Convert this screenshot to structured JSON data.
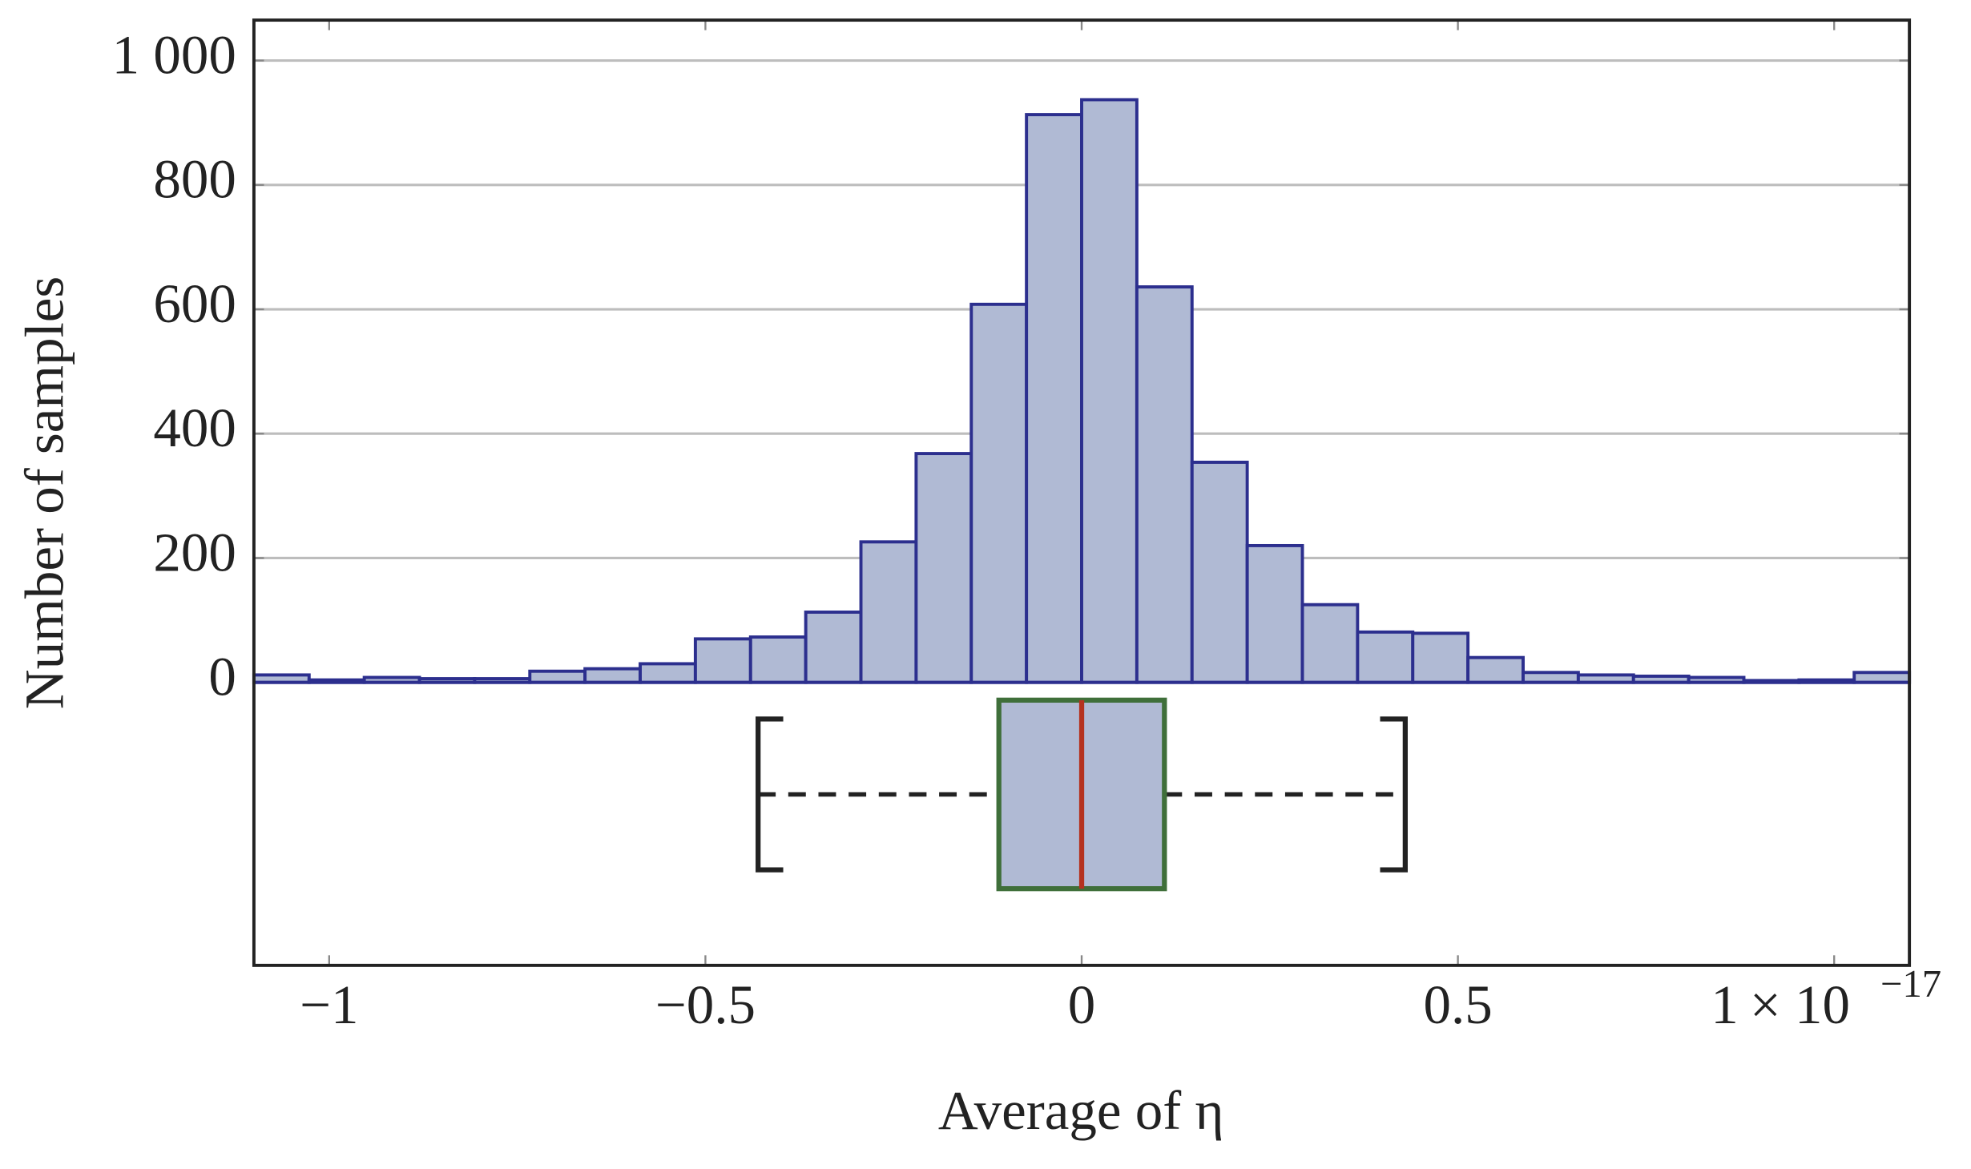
{
  "chart_data": {
    "type": "histogram",
    "xlabel": "Average of η",
    "ylabel": "Number of samples",
    "bins": [
      -1.1,
      -1.0266667,
      -0.9533333,
      -0.88,
      -0.8066667,
      -0.7333333,
      -0.66,
      -0.5866667,
      -0.5133333,
      -0.44,
      -0.3666667,
      -0.2933333,
      -0.22,
      -0.1466667,
      -0.0733333,
      0,
      0.0733333,
      0.1466667,
      0.22,
      0.2933333,
      0.3666667,
      0.44,
      0.5133333,
      0.5866667,
      0.66,
      0.7333333,
      0.8066667,
      0.88,
      0.9533333,
      1.0266667,
      1.1
    ],
    "values": [
      12,
      4,
      8,
      6,
      6,
      18,
      22,
      30,
      70,
      73,
      113,
      226,
      368,
      608,
      913,
      937,
      636,
      354,
      220,
      125,
      81,
      79,
      40,
      16,
      12,
      10,
      8,
      3,
      4,
      16
    ],
    "color": "#b0bad4",
    "edge_color": "#2c2f8e",
    "xlim": [
      -1.1,
      1.1
    ],
    "xticks": [
      {
        "value": -1,
        "label": "−1"
      },
      {
        "value": -0.5,
        "label": "−0.5"
      },
      0,
      0.5,
      1
    ],
    "x_multiplier": {
      "base": "× 10",
      "exponent": "−17"
    },
    "ylim": [
      -455,
      1065
    ],
    "yticks": [
      0,
      200,
      400,
      600,
      {
        "value": 800,
        "label": "800"
      },
      {
        "value": 1000,
        "label": "1 000"
      }
    ],
    "grid": true,
    "boxplot": {
      "lower_whisker": -0.43,
      "q1": -0.11,
      "median": 0,
      "q3": 0.11,
      "upper_whisker": 0.43,
      "box_color": "#3f6f3a",
      "median_color": "#b5321f",
      "fill": "#b0bad4"
    }
  }
}
